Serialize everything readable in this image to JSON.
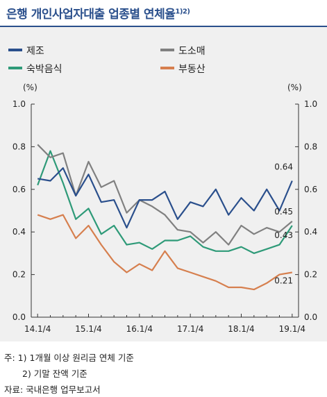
{
  "title": "은행 개인사업자대출 업종별 연체율",
  "title_sup": "1)2)",
  "footnotes": {
    "note1": "주: 1) 1개월 이상 원리금 연체 기준",
    "note2": "2) 기말 잔액 기준",
    "source": "자료: 국내은행 업무보고서"
  },
  "chart_data": {
    "type": "line",
    "y_unit_left": "(%)",
    "y_unit_right": "(%)",
    "ylim": [
      0,
      1.0
    ],
    "yticks": [
      "0.0",
      "0.2",
      "0.4",
      "0.6",
      "0.8",
      "1.0"
    ],
    "xticks": [
      "14.1/4",
      "15.1/4",
      "16.1/4",
      "17.1/4",
      "18.1/4",
      "19.1/4"
    ],
    "series": [
      {
        "name": "제조",
        "color": "#2a4f8c",
        "values": [
          0.65,
          0.64,
          0.7,
          0.57,
          0.67,
          0.54,
          0.55,
          0.42,
          0.55,
          0.55,
          0.59,
          0.46,
          0.54,
          0.52,
          0.6,
          0.48,
          0.56,
          0.5,
          0.6,
          0.5,
          0.64
        ]
      },
      {
        "name": "도소매",
        "color": "#808080",
        "values": [
          0.81,
          0.75,
          0.77,
          0.57,
          0.73,
          0.61,
          0.64,
          0.49,
          0.55,
          0.52,
          0.48,
          0.41,
          0.4,
          0.35,
          0.4,
          0.34,
          0.43,
          0.39,
          0.42,
          0.4,
          0.45
        ]
      },
      {
        "name": "숙박음식",
        "color": "#2e9a78",
        "values": [
          0.62,
          0.78,
          0.63,
          0.46,
          0.51,
          0.39,
          0.43,
          0.34,
          0.35,
          0.32,
          0.36,
          0.36,
          0.38,
          0.33,
          0.31,
          0.31,
          0.33,
          0.3,
          0.32,
          0.34,
          0.43
        ]
      },
      {
        "name": "부동산",
        "color": "#d67f4e",
        "values": [
          0.48,
          0.46,
          0.48,
          0.37,
          0.43,
          0.34,
          0.26,
          0.21,
          0.25,
          0.22,
          0.31,
          0.23,
          0.21,
          0.19,
          0.17,
          0.14,
          0.14,
          0.13,
          0.16,
          0.2,
          0.21
        ]
      }
    ],
    "end_labels": [
      "0.64",
      "0.45",
      "0.43",
      "0.21"
    ],
    "grid": false,
    "legend_position": "top"
  }
}
